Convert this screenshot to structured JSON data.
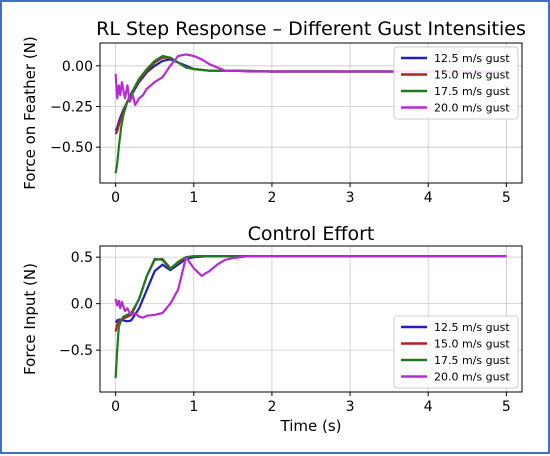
{
  "chart_data": [
    {
      "type": "line",
      "title": "RL Step Response – Different Gust Intensities",
      "xlabel": "",
      "ylabel": "Force on Feather (N)",
      "xlim": [
        -0.2,
        5.2
      ],
      "ylim": [
        -0.72,
        0.14
      ],
      "xticks": [
        0,
        1,
        2,
        3,
        4,
        5
      ],
      "xtick_labels": [
        "0",
        "1",
        "2",
        "3",
        "4",
        "5"
      ],
      "yticks": [
        0.0,
        -0.25,
        -0.5
      ],
      "ytick_labels": [
        "0.00",
        "−0.25",
        "−0.50"
      ],
      "grid": true,
      "legend": "top-right",
      "series": [
        {
          "name": "12.5 m/s gust",
          "color": "#1f1fbf",
          "x": [
            0,
            0.02,
            0.05,
            0.1,
            0.15,
            0.2,
            0.3,
            0.4,
            0.5,
            0.6,
            0.7,
            0.8,
            0.9,
            1.0,
            1.2,
            1.5,
            2.0,
            3.0,
            4.0,
            5.0
          ],
          "y": [
            -0.4,
            -0.38,
            -0.33,
            -0.27,
            -0.22,
            -0.18,
            -0.1,
            -0.04,
            0.0,
            0.03,
            0.04,
            0.02,
            0.0,
            -0.02,
            -0.03,
            -0.03,
            -0.035,
            -0.035,
            -0.035,
            -0.035
          ]
        },
        {
          "name": "15.0 m/s gust",
          "color": "#b22222",
          "x": [
            0,
            0.02,
            0.05,
            0.1,
            0.15,
            0.2,
            0.3,
            0.4,
            0.5,
            0.6,
            0.7,
            0.8,
            0.9,
            1.0,
            1.2,
            1.5,
            2.0,
            3.0,
            4.0,
            5.0
          ],
          "y": [
            -0.42,
            -0.4,
            -0.35,
            -0.28,
            -0.22,
            -0.17,
            -0.09,
            -0.03,
            0.02,
            0.05,
            0.05,
            0.02,
            -0.01,
            -0.02,
            -0.03,
            -0.03,
            -0.035,
            -0.035,
            -0.035,
            -0.035
          ]
        },
        {
          "name": "17.5 m/s gust",
          "color": "#1e7a1e",
          "x": [
            0,
            0.02,
            0.04,
            0.07,
            0.1,
            0.15,
            0.2,
            0.3,
            0.4,
            0.5,
            0.6,
            0.7,
            0.8,
            0.9,
            1.0,
            1.2,
            1.5,
            2.0,
            3.0,
            4.0,
            5.0
          ],
          "y": [
            -0.66,
            -0.6,
            -0.5,
            -0.38,
            -0.3,
            -0.22,
            -0.17,
            -0.08,
            -0.02,
            0.03,
            0.06,
            0.05,
            0.02,
            -0.01,
            -0.02,
            -0.03,
            -0.03,
            -0.035,
            -0.035,
            -0.035,
            -0.035
          ]
        },
        {
          "name": "20.0 m/s gust",
          "color": "#b72bd4",
          "x": [
            0,
            0.02,
            0.04,
            0.06,
            0.08,
            0.1,
            0.12,
            0.15,
            0.18,
            0.22,
            0.25,
            0.3,
            0.35,
            0.4,
            0.5,
            0.6,
            0.7,
            0.8,
            0.9,
            1.0,
            1.1,
            1.2,
            1.3,
            1.4,
            1.5,
            1.7,
            2.0,
            3.0,
            4.0,
            5.0
          ],
          "y": [
            -0.05,
            -0.2,
            -0.12,
            -0.18,
            -0.1,
            -0.15,
            -0.2,
            -0.12,
            -0.22,
            -0.18,
            -0.24,
            -0.2,
            -0.18,
            -0.14,
            -0.1,
            -0.07,
            0.0,
            0.06,
            0.07,
            0.06,
            0.04,
            0.01,
            -0.01,
            -0.03,
            -0.03,
            -0.035,
            -0.035,
            -0.035,
            -0.035,
            -0.035
          ]
        }
      ]
    },
    {
      "type": "line",
      "title": "Control Effort",
      "xlabel": "Time (s)",
      "ylabel": "Force Input (N)",
      "xlim": [
        -0.2,
        5.2
      ],
      "ylim": [
        -0.95,
        0.62
      ],
      "xticks": [
        0,
        1,
        2,
        3,
        4,
        5
      ],
      "xtick_labels": [
        "0",
        "1",
        "2",
        "3",
        "4",
        "5"
      ],
      "yticks": [
        0.5,
        0.0,
        -0.5
      ],
      "ytick_labels": [
        "0.5",
        "0.0",
        "−0.5"
      ],
      "grid": true,
      "legend": "bottom-right",
      "series": [
        {
          "name": "12.5 m/s gust",
          "color": "#1f1fbf",
          "x": [
            0,
            0.02,
            0.05,
            0.1,
            0.15,
            0.2,
            0.3,
            0.4,
            0.5,
            0.6,
            0.7,
            0.8,
            0.9,
            1.0,
            1.2,
            1.5,
            2.0,
            3.0,
            4.0,
            5.0
          ],
          "y": [
            -0.2,
            -0.18,
            -0.17,
            -0.18,
            -0.19,
            -0.18,
            -0.05,
            0.15,
            0.35,
            0.42,
            0.36,
            0.42,
            0.48,
            0.5,
            0.51,
            0.51,
            0.51,
            0.51,
            0.51,
            0.51
          ]
        },
        {
          "name": "15.0 m/s gust",
          "color": "#b22222",
          "x": [
            0,
            0.02,
            0.05,
            0.1,
            0.15,
            0.2,
            0.3,
            0.4,
            0.5,
            0.6,
            0.7,
            0.8,
            0.9,
            1.0,
            1.2,
            1.5,
            2.0,
            3.0,
            4.0,
            5.0
          ],
          "y": [
            -0.3,
            -0.22,
            -0.18,
            -0.16,
            -0.14,
            -0.12,
            0.05,
            0.3,
            0.47,
            0.48,
            0.38,
            0.44,
            0.5,
            0.51,
            0.51,
            0.51,
            0.51,
            0.51,
            0.51,
            0.51
          ]
        },
        {
          "name": "17.5 m/s gust",
          "color": "#1e7a1e",
          "x": [
            0,
            0.02,
            0.04,
            0.07,
            0.1,
            0.15,
            0.2,
            0.3,
            0.4,
            0.5,
            0.6,
            0.7,
            0.8,
            0.9,
            1.0,
            1.2,
            1.5,
            2.0,
            3.0,
            4.0,
            5.0
          ],
          "y": [
            -0.8,
            -0.5,
            -0.25,
            -0.18,
            -0.14,
            -0.12,
            -0.1,
            0.05,
            0.3,
            0.48,
            0.47,
            0.37,
            0.45,
            0.5,
            0.51,
            0.51,
            0.51,
            0.51,
            0.51,
            0.51,
            0.51
          ]
        },
        {
          "name": "20.0 m/s gust",
          "color": "#b72bd4",
          "x": [
            0,
            0.02,
            0.04,
            0.06,
            0.08,
            0.1,
            0.12,
            0.15,
            0.18,
            0.22,
            0.25,
            0.3,
            0.35,
            0.4,
            0.5,
            0.6,
            0.7,
            0.8,
            0.9,
            1.0,
            1.1,
            1.2,
            1.3,
            1.4,
            1.5,
            1.7,
            2.0,
            3.0,
            4.0,
            5.0
          ],
          "y": [
            0.05,
            -0.02,
            0.03,
            -0.05,
            0.02,
            -0.03,
            -0.08,
            -0.05,
            -0.1,
            -0.12,
            -0.1,
            -0.14,
            -0.15,
            -0.13,
            -0.12,
            -0.1,
            0.0,
            0.15,
            0.5,
            0.38,
            0.3,
            0.35,
            0.42,
            0.47,
            0.49,
            0.51,
            0.51,
            0.51,
            0.51,
            0.51
          ]
        }
      ]
    }
  ]
}
